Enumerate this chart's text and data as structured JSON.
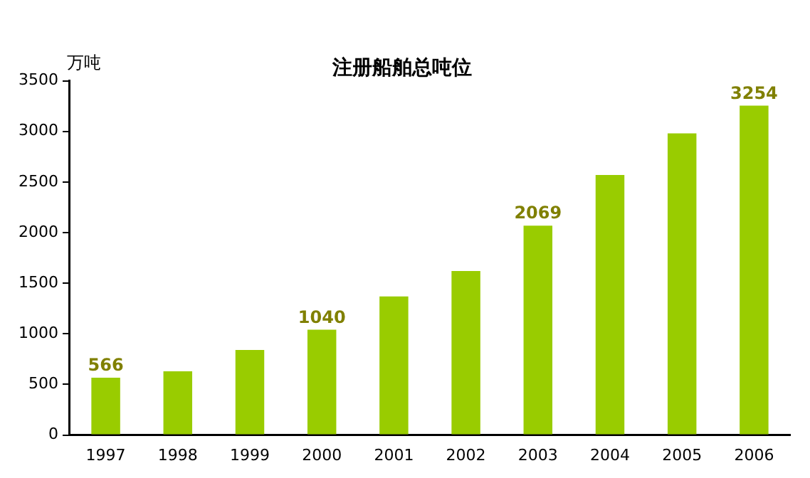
{
  "chart_data": {
    "type": "bar",
    "title": "注册船舶总吨位",
    "ylabel": "万吨",
    "categories": [
      "1997",
      "1998",
      "1999",
      "2000",
      "2001",
      "2002",
      "2003",
      "2004",
      "2005",
      "2006"
    ],
    "values": [
      566,
      630,
      840,
      1040,
      1370,
      1620,
      2069,
      2570,
      2980,
      3254
    ],
    "value_labels": [
      "566",
      null,
      null,
      "1040",
      null,
      null,
      "2069",
      null,
      null,
      "3254"
    ],
    "color": "#99cc00",
    "ylim": [
      0,
      3500
    ],
    "yticks": [
      0,
      500,
      1000,
      1500,
      2000,
      2500,
      3000,
      3500
    ],
    "grid": false
  }
}
